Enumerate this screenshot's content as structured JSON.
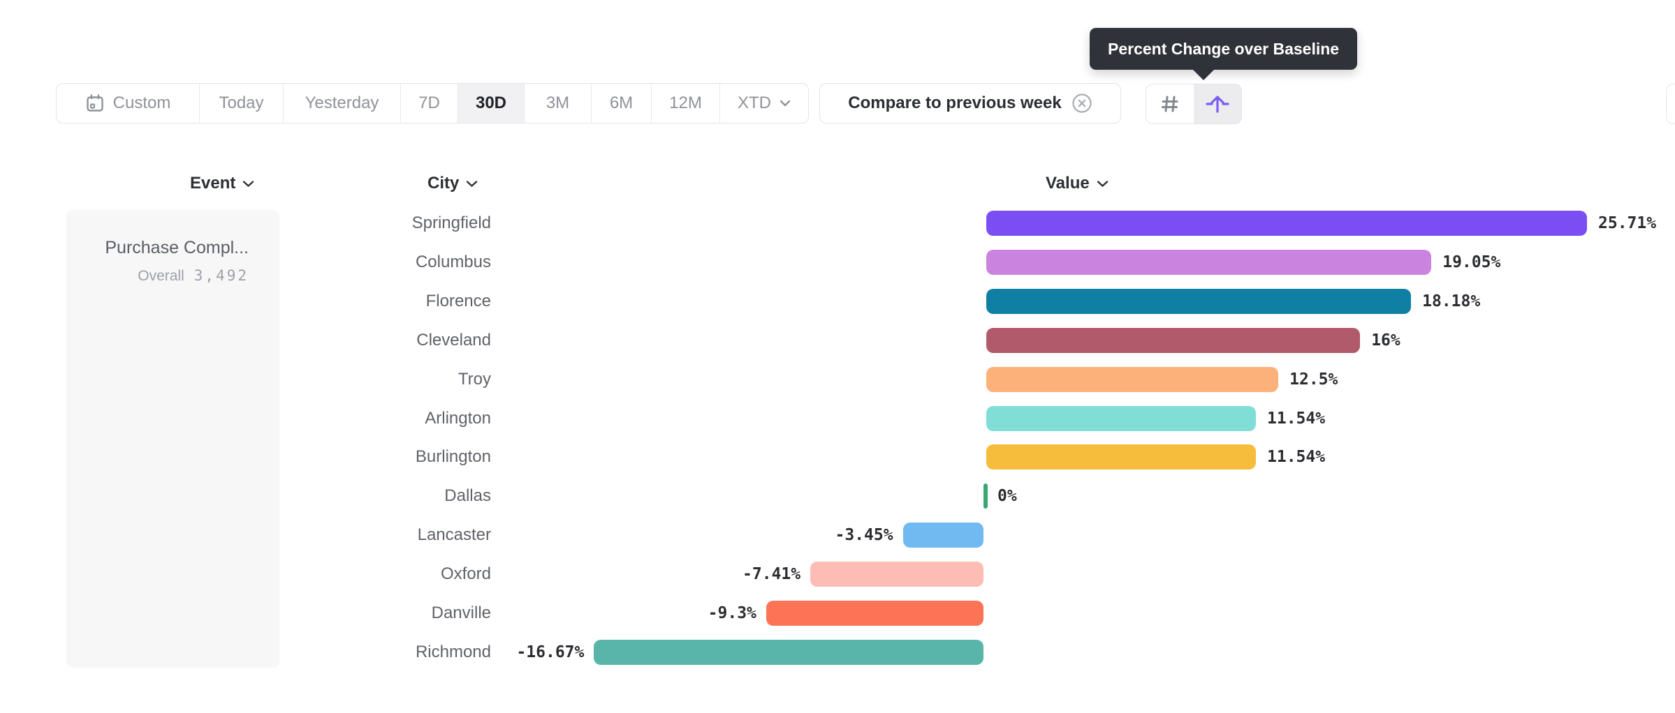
{
  "tooltip": {
    "text": "Percent Change over Baseline"
  },
  "toolbar": {
    "date_ranges": [
      {
        "label": "Custom",
        "selected": false,
        "icon": "calendar-icon"
      },
      {
        "label": "Today",
        "selected": false
      },
      {
        "label": "Yesterday",
        "selected": false
      },
      {
        "label": "7D",
        "selected": false
      },
      {
        "label": "30D",
        "selected": true
      },
      {
        "label": "3M",
        "selected": false
      },
      {
        "label": "6M",
        "selected": false
      },
      {
        "label": "12M",
        "selected": false
      },
      {
        "label": "XTD",
        "selected": false,
        "chevron": true
      }
    ],
    "compare_button": {
      "label": "Compare to previous week",
      "dismiss_icon": "circle-x-icon"
    },
    "view_toggle": {
      "options": [
        {
          "icon": "hash-icon",
          "selected": false
        },
        {
          "icon": "baseline-arrow-icon",
          "selected": true
        }
      ],
      "accent_color": "#7a5cf0"
    }
  },
  "columns": {
    "event": "Event",
    "city": "City",
    "value": "Value"
  },
  "event_card": {
    "title": "Purchase Compl...",
    "overall_label": "Overall",
    "overall_value": "3,492"
  },
  "chart_data": {
    "type": "bar",
    "orientation": "horizontal",
    "value_unit": "percent",
    "baseline": 0,
    "xlim": [
      -16.67,
      25.71
    ],
    "grid": false,
    "categories": [
      "Springfield",
      "Columbus",
      "Florence",
      "Cleveland",
      "Troy",
      "Arlington",
      "Burlington",
      "Dallas",
      "Lancaster",
      "Oxford",
      "Danville",
      "Richmond"
    ],
    "values": [
      25.71,
      19.05,
      18.18,
      16,
      12.5,
      11.54,
      11.54,
      0,
      -3.45,
      -7.41,
      -9.3,
      -16.67
    ],
    "value_labels": [
      "25.71%",
      "19.05%",
      "18.18%",
      "16%",
      "12.5%",
      "11.54%",
      "11.54%",
      "0%",
      "-3.45%",
      "-7.41%",
      "-9.3%",
      "-16.67%"
    ],
    "bar_colors": [
      "#7b4ef3",
      "#ca84e0",
      "#0f80a4",
      "#b15a6c",
      "#fdb17a",
      "#80ded6",
      "#f6bc3c",
      "#35a873",
      "#70b9f1",
      "#fdbcb4",
      "#fd7356",
      "#59b5aa"
    ],
    "zero_marker_color": "#35a873"
  }
}
